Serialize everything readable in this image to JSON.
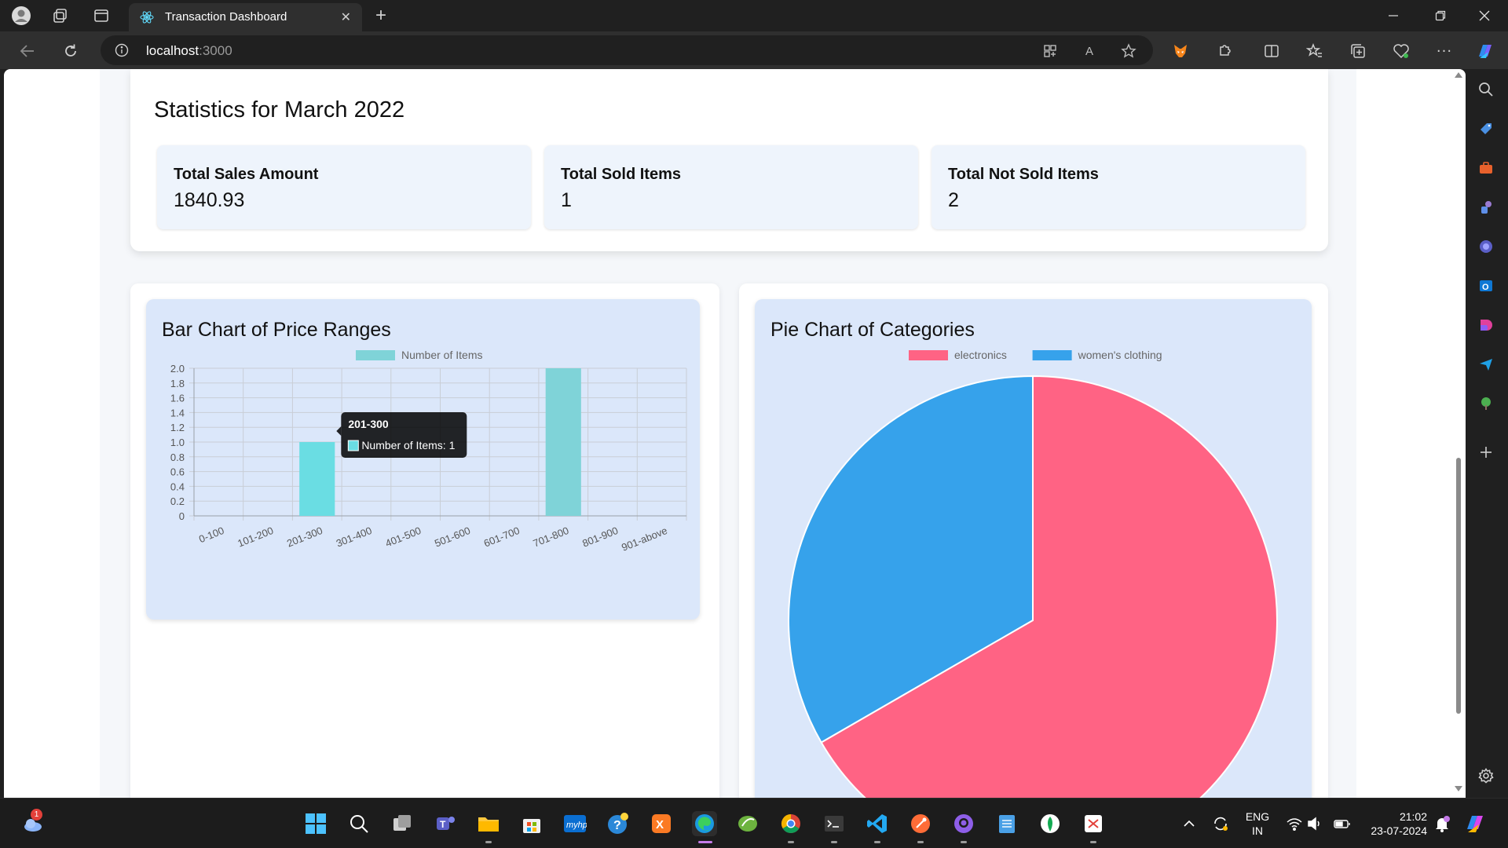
{
  "browser": {
    "tab_title": "Transaction Dashboard",
    "url_host": "localhost",
    "url_port": ":3000"
  },
  "stats": {
    "title": "Statistics for March 2022",
    "boxes": [
      {
        "label": "Total Sales Amount",
        "value": "1840.93"
      },
      {
        "label": "Total Sold Items",
        "value": "1"
      },
      {
        "label": "Total Not Sold Items",
        "value": "2"
      }
    ]
  },
  "bar_chart": {
    "title": "Bar Chart of Price Ranges",
    "tooltip_title": "201-300",
    "tooltip_body": "Number of Items: 1"
  },
  "pie_chart": {
    "title": "Pie Chart of Categories"
  },
  "chart_data": [
    {
      "type": "bar",
      "title": "Bar Chart of Price Ranges",
      "categories": [
        "0-100",
        "101-200",
        "201-300",
        "301-400",
        "401-500",
        "501-600",
        "601-700",
        "701-800",
        "801-900",
        "901-above"
      ],
      "series": [
        {
          "name": "Number of Items",
          "values": [
            0,
            0,
            1,
            0,
            0,
            0,
            0,
            2,
            0,
            0
          ],
          "color": "#7fd3d8"
        }
      ],
      "ylim": [
        0,
        2
      ],
      "yticks": [
        "0",
        "0.2",
        "0.4",
        "0.6",
        "0.8",
        "1.0",
        "1.2",
        "1.4",
        "1.6",
        "1.8",
        "2.0"
      ],
      "highlight_index": 2,
      "highlight_color": "#6adde3",
      "grid": true,
      "legend": "top"
    },
    {
      "type": "pie",
      "title": "Pie Chart of Categories",
      "labels": [
        "electronics",
        "women's clothing"
      ],
      "values": [
        2,
        1
      ],
      "colors": [
        "#ff6384",
        "#36a2eb"
      ],
      "legend": "top"
    }
  ],
  "taskbar": {
    "lang_line1": "ENG",
    "lang_line2": "IN",
    "time": "21:02",
    "date": "23-07-2024",
    "weather_badge": "1"
  }
}
